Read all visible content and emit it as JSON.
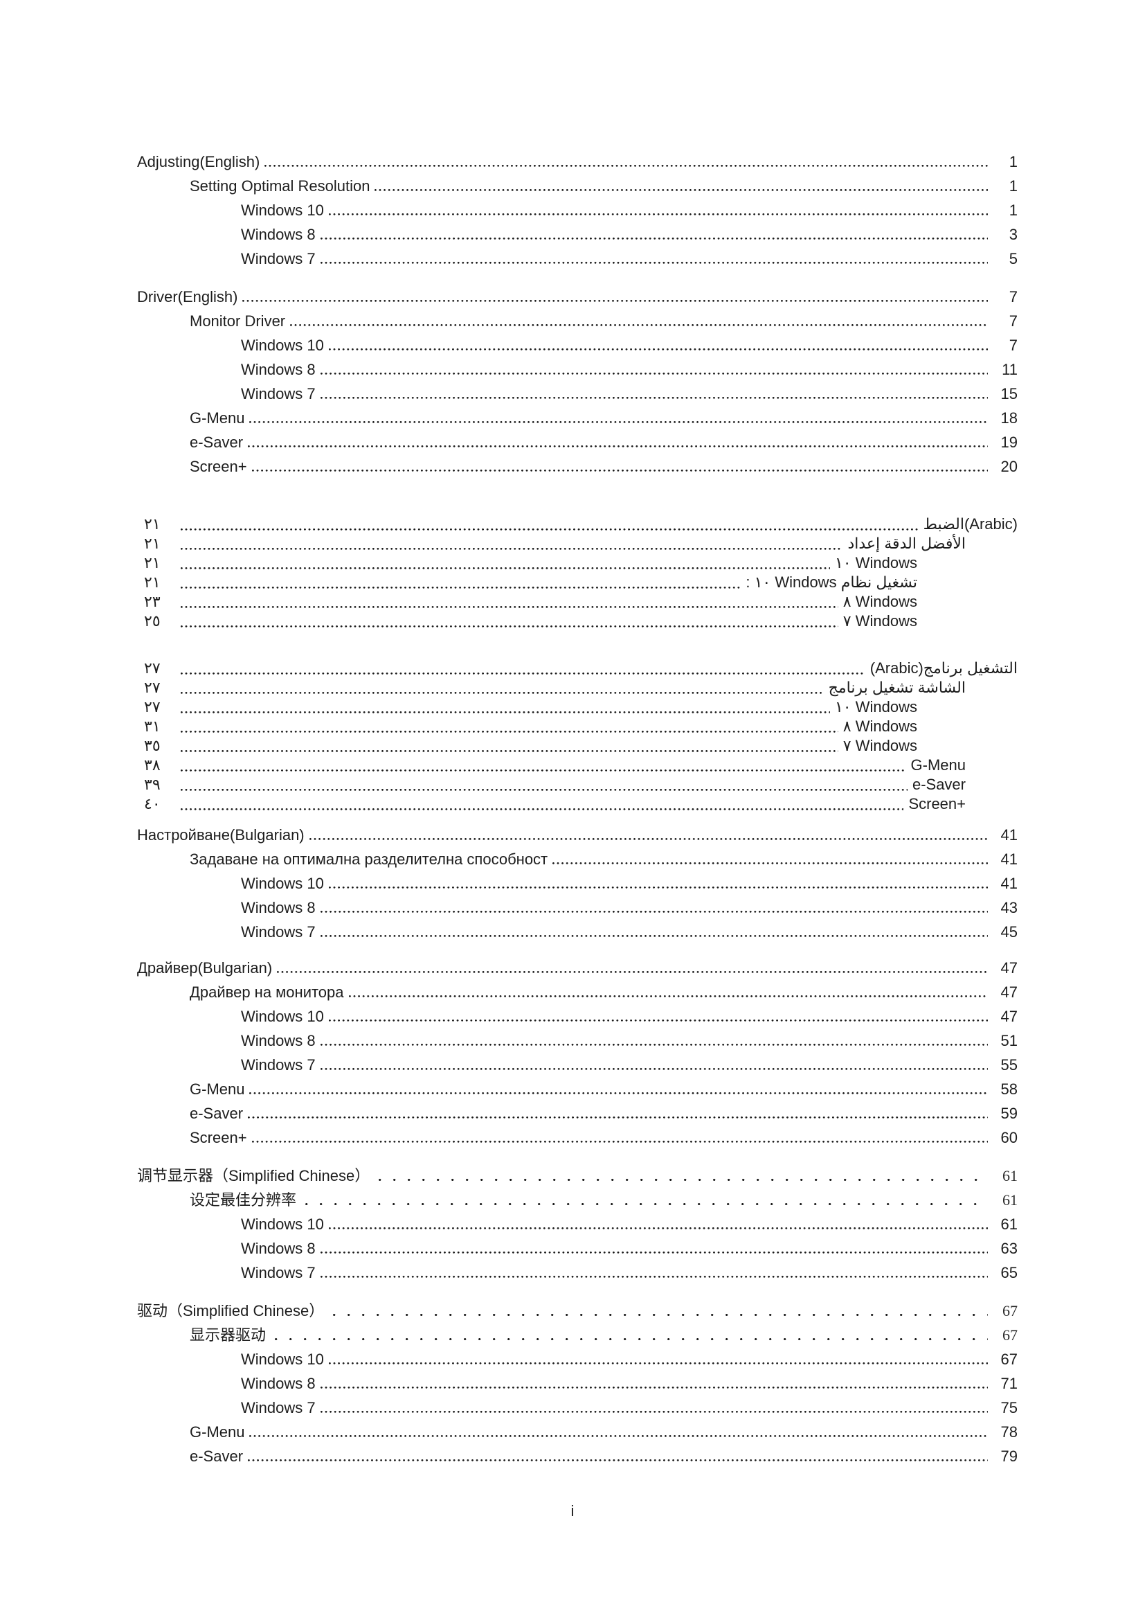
{
  "page": {
    "footer": "i"
  },
  "toc": {
    "sections": [
      {
        "dir": "ltr",
        "rows": [
          {
            "level": 0,
            "title": "Adjusting(English)",
            "page": "1"
          },
          {
            "level": 1,
            "title": "Setting Optimal Resolution",
            "page": "1"
          },
          {
            "level": 2,
            "title": "Windows 10",
            "page": "1"
          },
          {
            "level": 2,
            "title": "Windows 8",
            "page": "3"
          },
          {
            "level": 2,
            "title": "Windows 7",
            "page": "5"
          }
        ]
      },
      {
        "dir": "ltr",
        "rows": [
          {
            "level": 0,
            "title": "Driver(English)",
            "page": "7"
          },
          {
            "level": 1,
            "title": "Monitor Driver",
            "page": "7"
          },
          {
            "level": 2,
            "title": "Windows 10",
            "page": "7"
          },
          {
            "level": 2,
            "title": "Windows 8",
            "page": "11"
          },
          {
            "level": 2,
            "title": "Windows 7",
            "page": "15"
          },
          {
            "level": 1,
            "title": "G-Menu",
            "page": "18"
          },
          {
            "level": 1,
            "title": "e-Saver",
            "page": "19"
          },
          {
            "level": 1,
            "title": "Screen+",
            "page": "20"
          }
        ]
      },
      {
        "dir": "rtl",
        "rows": [
          {
            "level": 0,
            "title": "الضبط(Arabic)",
            "page": "٢١"
          },
          {
            "level": 1,
            "title": "إعداد الدقة الأفضل",
            "page": "٢١"
          },
          {
            "level": 2,
            "title": "١٠ Windows",
            "page": "٢١"
          },
          {
            "level": 2,
            "title": ": ١٠ Windows نظام تشغيل",
            "page": "٢١"
          },
          {
            "level": 2,
            "title": "٨ Windows",
            "page": "٢٣"
          },
          {
            "level": 2,
            "title": "٧ Windows",
            "page": "٢٥"
          }
        ]
      },
      {
        "dir": "rtl",
        "rows": [
          {
            "level": 0,
            "title": "(Arabic)برنامج التشغيل",
            "page": "٢٧"
          },
          {
            "level": 1,
            "title": "برنامج تشغيل الشاشة",
            "page": "٢٧"
          },
          {
            "level": 2,
            "title": "١٠ Windows",
            "page": "٢٧"
          },
          {
            "level": 2,
            "title": "٨ Windows",
            "page": "٣١"
          },
          {
            "level": 2,
            "title": "٧ Windows",
            "page": "٣٥"
          },
          {
            "level": 1,
            "title": "G-Menu",
            "page": "٣٨"
          },
          {
            "level": 1,
            "title": "e-Saver",
            "page": "٣٩"
          },
          {
            "level": 1,
            "title": "Screen+",
            "page": "٤٠"
          }
        ]
      },
      {
        "dir": "ltr",
        "rows": [
          {
            "level": 0,
            "title": "Настройване(Bulgarian)",
            "page": "41"
          },
          {
            "level": 1,
            "title": "Задаване на оптимална разделителна способност",
            "page": "41"
          },
          {
            "level": 2,
            "title": "Windows 10",
            "page": "41"
          },
          {
            "level": 2,
            "title": "Windows 8",
            "page": "43"
          },
          {
            "level": 2,
            "title": "Windows 7",
            "page": "45"
          }
        ]
      },
      {
        "dir": "ltr",
        "rows": [
          {
            "level": 0,
            "title": "Драйвер(Bulgarian)",
            "page": "47"
          },
          {
            "level": 1,
            "title": "Драйвер на монитора",
            "page": "47"
          },
          {
            "level": 2,
            "title": "Windows 10",
            "page": "47"
          },
          {
            "level": 2,
            "title": "Windows 8",
            "page": "51"
          },
          {
            "level": 2,
            "title": "Windows 7",
            "page": "55"
          },
          {
            "level": 1,
            "title": "G-Menu",
            "page": "58"
          },
          {
            "level": 1,
            "title": "e-Saver",
            "page": "59"
          },
          {
            "level": 1,
            "title": "Screen+",
            "page": "60"
          }
        ]
      },
      {
        "dir": "ltr",
        "rows": [
          {
            "level": 0,
            "title": "调节显示器（Simplified Chinese） ",
            "page": "61",
            "wide": true
          },
          {
            "level": 1,
            "title": "设定最佳分辨率 ",
            "page": "61",
            "wide": true
          },
          {
            "level": 2,
            "title": "Windows 10",
            "page": "61"
          },
          {
            "level": 2,
            "title": "Windows 8",
            "page": "63"
          },
          {
            "level": 2,
            "title": "Windows 7",
            "page": "65"
          }
        ]
      },
      {
        "dir": "ltr",
        "rows": [
          {
            "level": 0,
            "title": "驱动（Simplified Chinese） ",
            "page": "67",
            "wide": true
          },
          {
            "level": 1,
            "title": "显示器驱动 ",
            "page": "67",
            "wide": true
          },
          {
            "level": 2,
            "title": "Windows 10",
            "page": "67"
          },
          {
            "level": 2,
            "title": "Windows 8",
            "page": "71"
          },
          {
            "level": 2,
            "title": "Windows 7",
            "page": "75"
          },
          {
            "level": 1,
            "title": "G-Menu",
            "page": "78"
          },
          {
            "level": 1,
            "title": "e-Saver",
            "page": "79"
          }
        ]
      }
    ]
  }
}
